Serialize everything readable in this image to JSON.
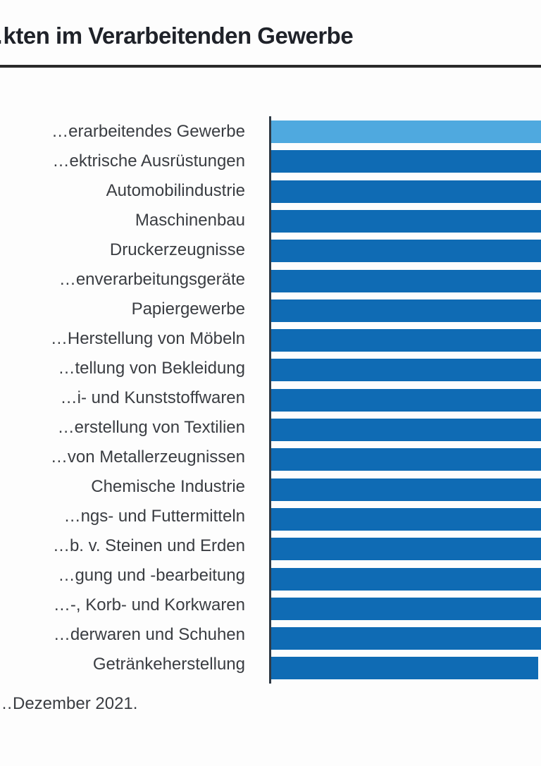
{
  "colors": {
    "highlight": "#4fa9df",
    "bar": "#0f6bb4",
    "axis": "#2f3a45",
    "text": "#3a3d42"
  },
  "chart_data": {
    "type": "bar",
    "orientation": "horizontal",
    "title": "…kten im Verarbeitenden Gewerbe",
    "xlabel": "",
    "ylabel": "",
    "footnote": "…Dezember 2021.",
    "categories": [
      "…erarbeitendes Gewerbe",
      "…ektrische Ausrüstungen",
      "Automobilindustrie",
      "Maschinenbau",
      "Druckerzeugnisse",
      "…enverarbeitungsgeräte",
      "Papiergewerbe",
      "…Herstellung von Möbeln",
      "…tellung von Bekleidung",
      "…i- und Kunststoffwaren",
      "…erstellung von Textilien",
      "…von Metallerzeugnissen",
      "Chemische Industrie",
      "…ngs- und Futtermitteln",
      "…b. v. Steinen und Erden",
      "…gung und -bearbeitung",
      "…-, Korb- und Korkwaren",
      "…derwaren und Schuhen",
      "Getränkeherstellung"
    ],
    "highlight_index": 0,
    "note": "Bars extend beyond the visible crop on the right; values are relative (fraction of the visible plot width).",
    "values": [
      1.0,
      1.0,
      1.0,
      1.0,
      1.0,
      1.0,
      1.0,
      1.0,
      1.0,
      1.0,
      1.0,
      1.0,
      1.0,
      1.0,
      1.0,
      1.0,
      1.0,
      1.0,
      0.99
    ],
    "legend": "none",
    "grid": false
  }
}
